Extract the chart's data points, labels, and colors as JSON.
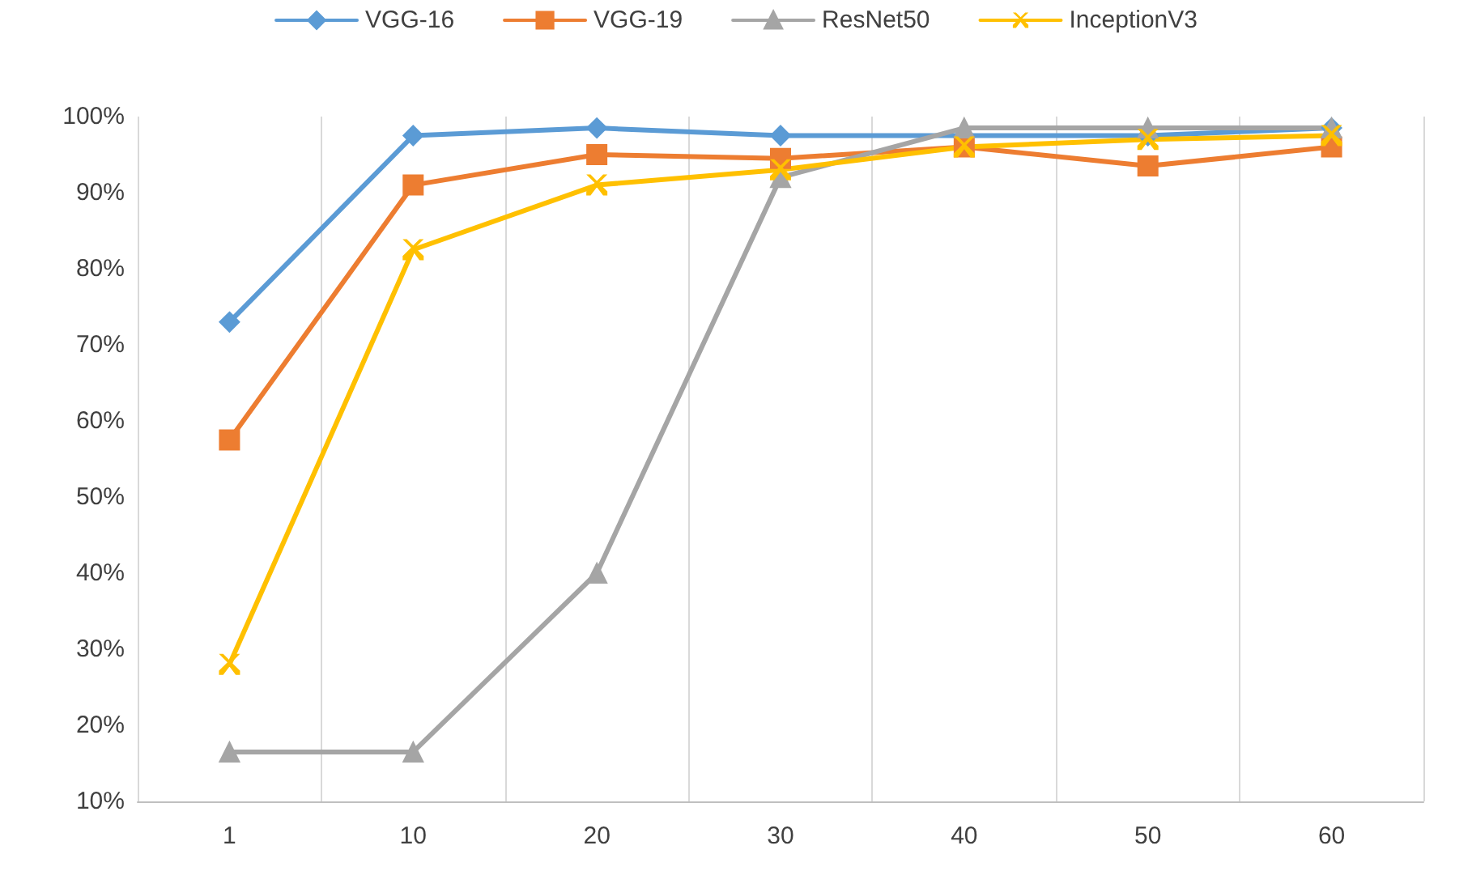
{
  "chart_data": {
    "type": "line",
    "categories": [
      "1",
      "10",
      "20",
      "30",
      "40",
      "50",
      "60"
    ],
    "series": [
      {
        "name": "VGG-16",
        "color": "#5b9bd5",
        "marker": "diamond",
        "values": [
          73,
          97.5,
          98.5,
          97.5,
          97.5,
          97.5,
          98.5
        ]
      },
      {
        "name": "VGG-19",
        "color": "#ed7d31",
        "marker": "square",
        "values": [
          57.5,
          91,
          95,
          94.5,
          96,
          93.5,
          96
        ]
      },
      {
        "name": "ResNet50",
        "color": "#a5a5a5",
        "marker": "triangle",
        "values": [
          16.5,
          16.5,
          40,
          92,
          98.5,
          98.5,
          98.5
        ]
      },
      {
        "name": "InceptionV3",
        "color": "#ffc000",
        "marker": "cross",
        "values": [
          28,
          82.5,
          91,
          93,
          96,
          97,
          97.5
        ]
      }
    ],
    "ylim": [
      10,
      100
    ],
    "yticks": [
      {
        "value": 10,
        "label": "10%"
      },
      {
        "value": 20,
        "label": "20%"
      },
      {
        "value": 30,
        "label": "30%"
      },
      {
        "value": 40,
        "label": "40%"
      },
      {
        "value": 50,
        "label": "50%"
      },
      {
        "value": 60,
        "label": "60%"
      },
      {
        "value": 70,
        "label": "70%"
      },
      {
        "value": 80,
        "label": "80%"
      },
      {
        "value": 90,
        "label": "90%"
      },
      {
        "value": 100,
        "label": "100%"
      }
    ],
    "grid": "x",
    "legend": "top",
    "line_style": "solid"
  }
}
